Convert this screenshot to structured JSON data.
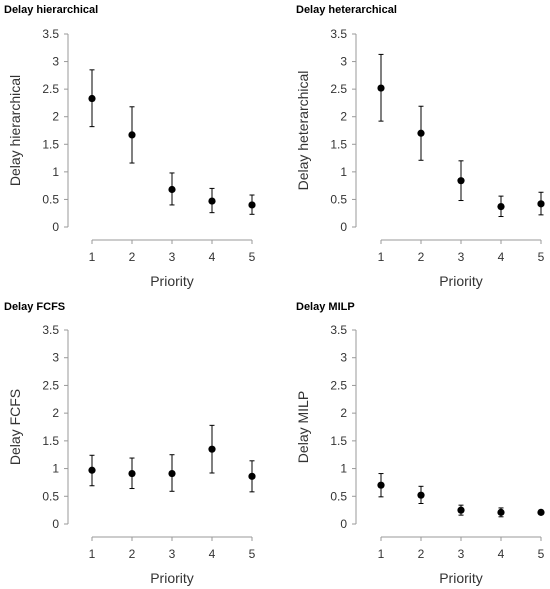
{
  "chart_data": [
    {
      "type": "scatter",
      "title": "Delay hierarchical",
      "xlabel": "Priority",
      "ylabel": "Delay hierarchical",
      "x": [
        1,
        2,
        3,
        4,
        5
      ],
      "xticks": [
        "1",
        "2",
        "3",
        "4",
        "5"
      ],
      "yticks": [
        "0",
        "0.5",
        "1",
        "1.5",
        "2",
        "2.5",
        "3",
        "3.5"
      ],
      "ylim": [
        0,
        3.5
      ],
      "grid": false,
      "series": [
        {
          "values": [
            2.33,
            1.67,
            0.68,
            0.47,
            0.4
          ],
          "error_low": [
            1.82,
            1.16,
            0.4,
            0.26,
            0.23
          ],
          "error_high": [
            2.85,
            2.18,
            0.98,
            0.7,
            0.58
          ]
        }
      ]
    },
    {
      "type": "scatter",
      "title": "Delay heterarchical",
      "xlabel": "Priority",
      "ylabel": "Delay heterarchical",
      "x": [
        1,
        2,
        3,
        4,
        5
      ],
      "xticks": [
        "1",
        "2",
        "3",
        "4",
        "5"
      ],
      "yticks": [
        "0",
        "0.5",
        "1",
        "1.5",
        "2",
        "2.5",
        "3",
        "3.5"
      ],
      "ylim": [
        0,
        3.5
      ],
      "grid": false,
      "series": [
        {
          "values": [
            2.52,
            1.7,
            0.84,
            0.37,
            0.42
          ],
          "error_low": [
            1.92,
            1.21,
            0.48,
            0.19,
            0.22
          ],
          "error_high": [
            3.13,
            2.19,
            1.2,
            0.56,
            0.63
          ]
        }
      ]
    },
    {
      "type": "scatter",
      "title": "Delay FCFS",
      "xlabel": "Priority",
      "ylabel": "Delay FCFS",
      "x": [
        1,
        2,
        3,
        4,
        5
      ],
      "xticks": [
        "1",
        "2",
        "3",
        "4",
        "5"
      ],
      "yticks": [
        "0",
        "0.5",
        "1",
        "1.5",
        "2",
        "2.5",
        "3",
        "3.5"
      ],
      "ylim": [
        0,
        3.5
      ],
      "grid": false,
      "series": [
        {
          "values": [
            0.97,
            0.91,
            0.91,
            1.35,
            0.86
          ],
          "error_low": [
            0.69,
            0.64,
            0.59,
            0.92,
            0.58
          ],
          "error_high": [
            1.24,
            1.19,
            1.25,
            1.78,
            1.14
          ]
        }
      ]
    },
    {
      "type": "scatter",
      "title": "Delay MILP",
      "xlabel": "Priority",
      "ylabel": "Delay MILP",
      "x": [
        1,
        2,
        3,
        4,
        5
      ],
      "xticks": [
        "1",
        "2",
        "3",
        "4",
        "5"
      ],
      "yticks": [
        "0",
        "0.5",
        "1",
        "1.5",
        "2",
        "2.5",
        "3",
        "3.5"
      ],
      "ylim": [
        0,
        3.5
      ],
      "grid": false,
      "series": [
        {
          "values": [
            0.7,
            0.52,
            0.25,
            0.21,
            0.21
          ],
          "error_low": [
            0.49,
            0.37,
            0.16,
            0.13,
            0.17
          ],
          "error_high": [
            0.91,
            0.68,
            0.34,
            0.29,
            0.25
          ]
        }
      ]
    }
  ]
}
